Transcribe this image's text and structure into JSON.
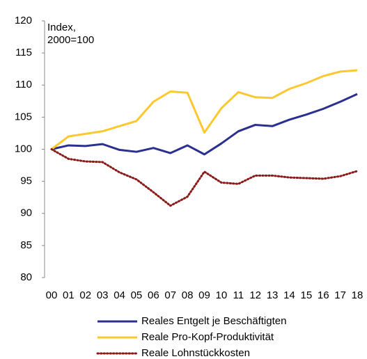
{
  "chart_data": {
    "type": "line",
    "ylabel": [
      "Index,",
      "2000=100"
    ],
    "categories": [
      "00",
      "01",
      "02",
      "03",
      "04",
      "05",
      "06",
      "07",
      "08",
      "09",
      "10",
      "11",
      "12",
      "13",
      "14",
      "15",
      "16",
      "17",
      "18"
    ],
    "series": [
      {
        "name": "Reales Entgelt je Beschäftigten",
        "color": "#2b2f8f",
        "style": "solid",
        "values": [
          100,
          100.6,
          100.5,
          100.8,
          99.9,
          99.6,
          100.2,
          99.4,
          100.6,
          99.2,
          100.9,
          102.8,
          103.8,
          103.6,
          104.6,
          105.4,
          106.3,
          107.4,
          108.6
        ]
      },
      {
        "name": "Reale Pro-Kopf-Produktivität",
        "color": "#fdc82f",
        "style": "solid",
        "values": [
          100,
          102,
          102.4,
          102.8,
          103.6,
          104.4,
          107.4,
          109,
          108.8,
          102.6,
          106.4,
          108.9,
          108.1,
          108,
          109.4,
          110.3,
          111.4,
          112.1,
          112.3
        ]
      },
      {
        "name": "Reale Lohnstückkosten",
        "color": "#8b1a1a",
        "style": "dotted",
        "values": [
          100,
          98.5,
          98.1,
          98,
          96.4,
          95.3,
          93.3,
          91.2,
          92.6,
          96.5,
          94.8,
          94.6,
          95.9,
          95.9,
          95.6,
          95.5,
          95.4,
          95.8,
          96.6
        ]
      }
    ],
    "ylim": [
      80,
      120
    ],
    "yticks": [
      80,
      85,
      90,
      95,
      100,
      105,
      110,
      115,
      120
    ],
    "grid": false
  }
}
